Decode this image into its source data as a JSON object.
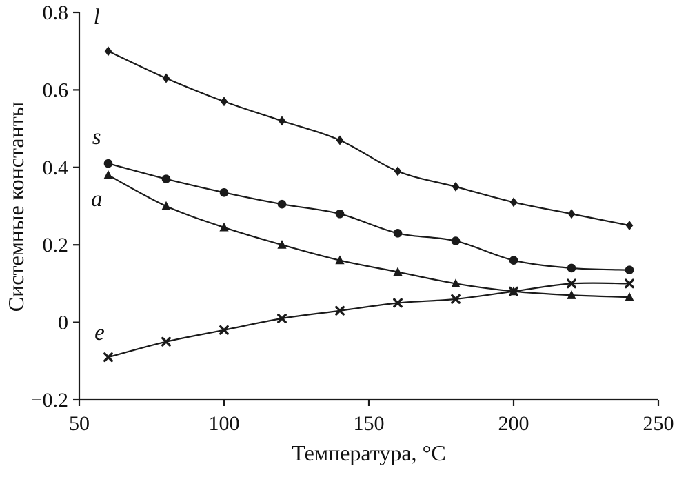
{
  "chart_data": {
    "type": "line",
    "title": "",
    "xlabel": "Температура, °C",
    "ylabel": "Системные константы",
    "xlim": [
      50,
      250
    ],
    "ylim": [
      -0.2,
      0.8
    ],
    "xticks": [
      50,
      100,
      150,
      200,
      250
    ],
    "yticks": [
      -0.2,
      0,
      0.2,
      0.4,
      0.6,
      0.8
    ],
    "grid": false,
    "legend_position": "inline-curve-labels",
    "color": "#1a1a1a",
    "x": [
      60,
      80,
      100,
      120,
      140,
      160,
      180,
      200,
      220,
      240
    ],
    "series": [
      {
        "name": "l",
        "marker": "diamond",
        "values": [
          0.7,
          0.63,
          0.57,
          0.52,
          0.47,
          0.39,
          0.35,
          0.31,
          0.28,
          0.25
        ],
        "label_pos": [
          56,
          0.77
        ]
      },
      {
        "name": "s",
        "marker": "circle",
        "values": [
          0.41,
          0.37,
          0.335,
          0.305,
          0.28,
          0.23,
          0.21,
          0.16,
          0.14,
          0.135
        ],
        "label_pos": [
          56,
          0.46
        ]
      },
      {
        "name": "a",
        "marker": "triangle",
        "values": [
          0.38,
          0.3,
          0.245,
          0.2,
          0.16,
          0.13,
          0.1,
          0.08,
          0.07,
          0.065
        ],
        "label_pos": [
          56,
          0.3
        ]
      },
      {
        "name": "e",
        "marker": "x",
        "values": [
          -0.09,
          -0.05,
          -0.02,
          0.01,
          0.03,
          0.05,
          0.06,
          0.08,
          0.1,
          0.1
        ],
        "label_pos": [
          57,
          -0.045
        ]
      }
    ]
  }
}
